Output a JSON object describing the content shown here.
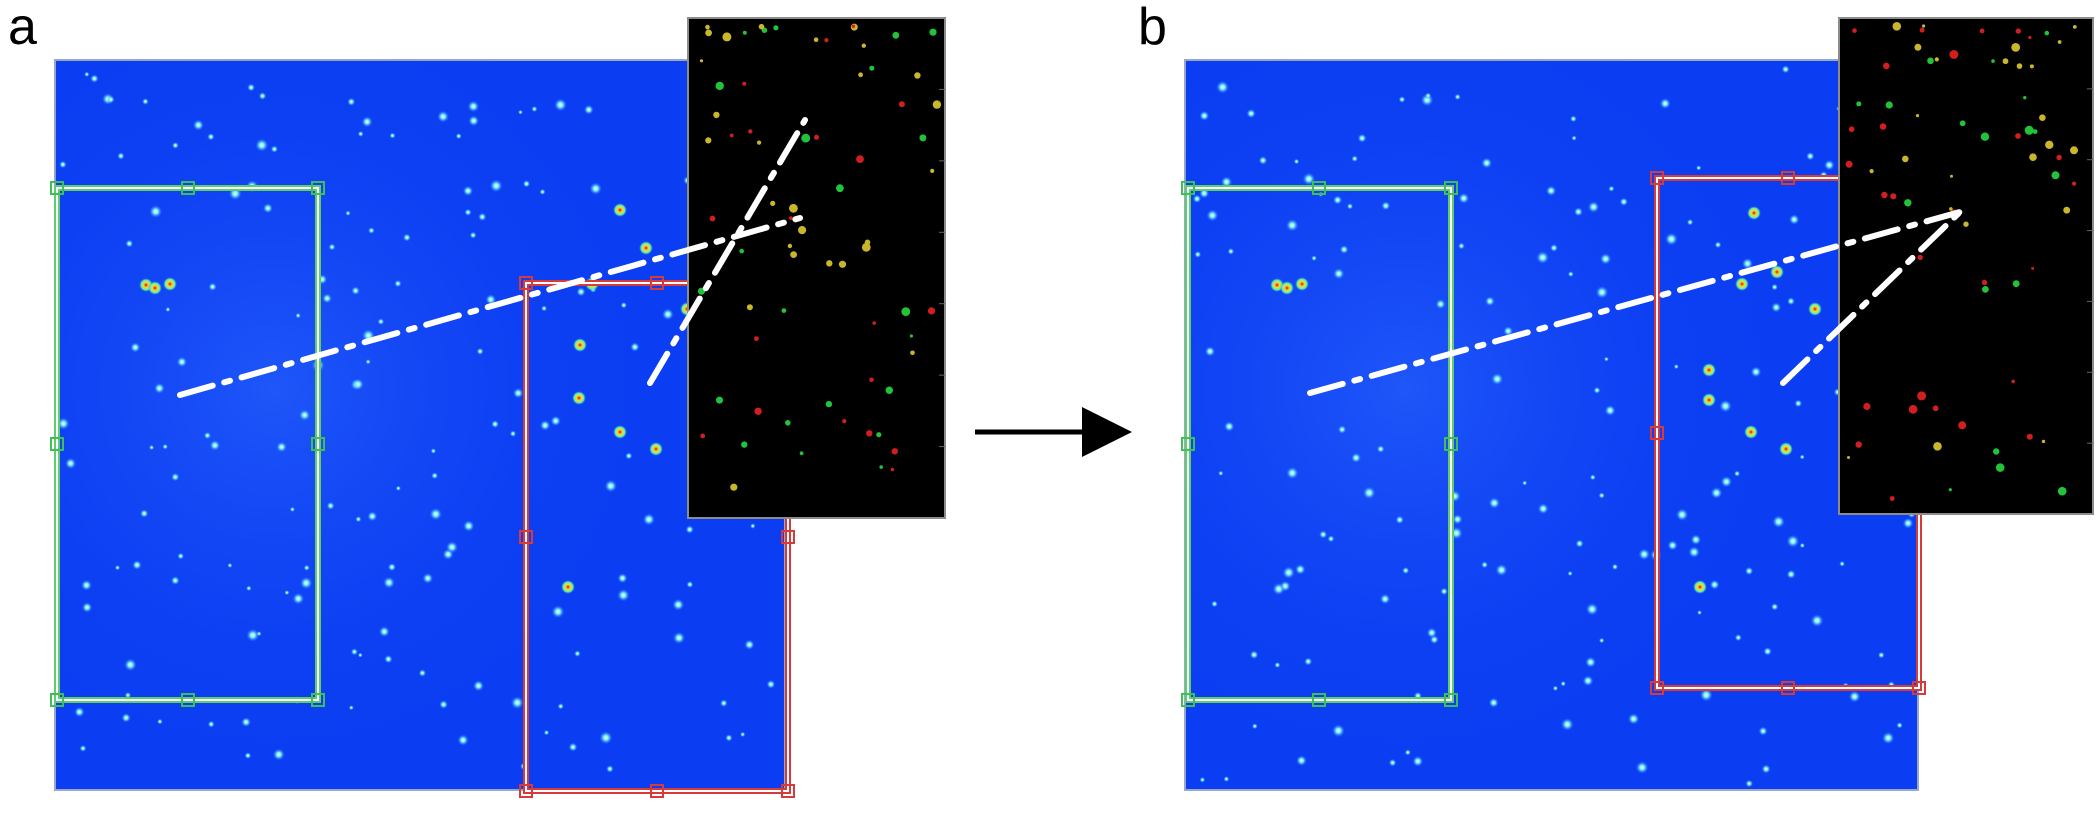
{
  "figure": {
    "panels": [
      {
        "id": "a",
        "label": "a"
      },
      {
        "id": "b",
        "label": "b"
      }
    ],
    "colors": {
      "image_background": "#0b3df2",
      "left_roi": "#5ccf6a",
      "right_roi": "#d63a3a",
      "overlay_background": "#000000",
      "spot_green": "#22c33a",
      "spot_red": "#d11f1f",
      "guide_line": "#ffffff",
      "arrow": "#000000"
    }
  }
}
